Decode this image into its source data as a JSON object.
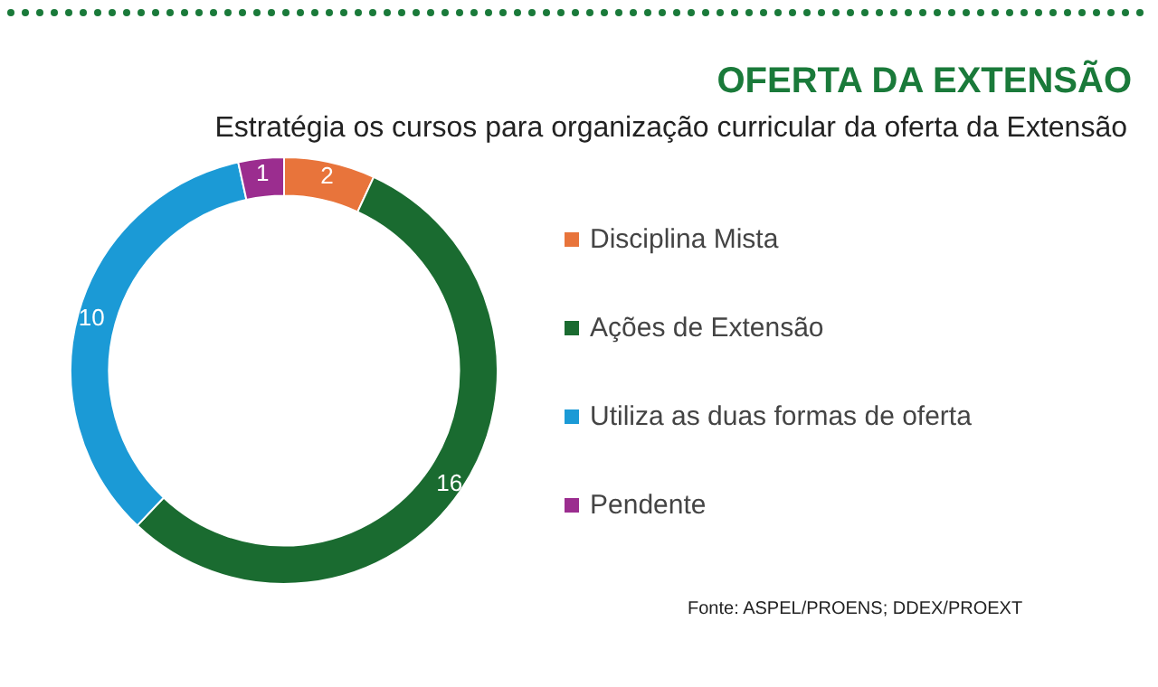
{
  "chart_data": {
    "type": "donut",
    "title": "OFERTA DA EXTENSÃO",
    "subtitle": "Estratégia os cursos para organização curricular da oferta da Extensão",
    "categories": [
      "Disciplina Mista",
      "Ações de Extensão",
      "Utiliza as duas formas de oferta",
      "Pendente"
    ],
    "values": [
      2,
      16,
      10,
      1
    ],
    "colors": [
      "#e8743b",
      "#1a6b30",
      "#1b9ad6",
      "#9b2d8f"
    ],
    "data_labels": true,
    "legend": "right",
    "annotations": [
      "Fonte: ASPEL/PROENS; DDEX/PROEXT"
    ]
  }
}
